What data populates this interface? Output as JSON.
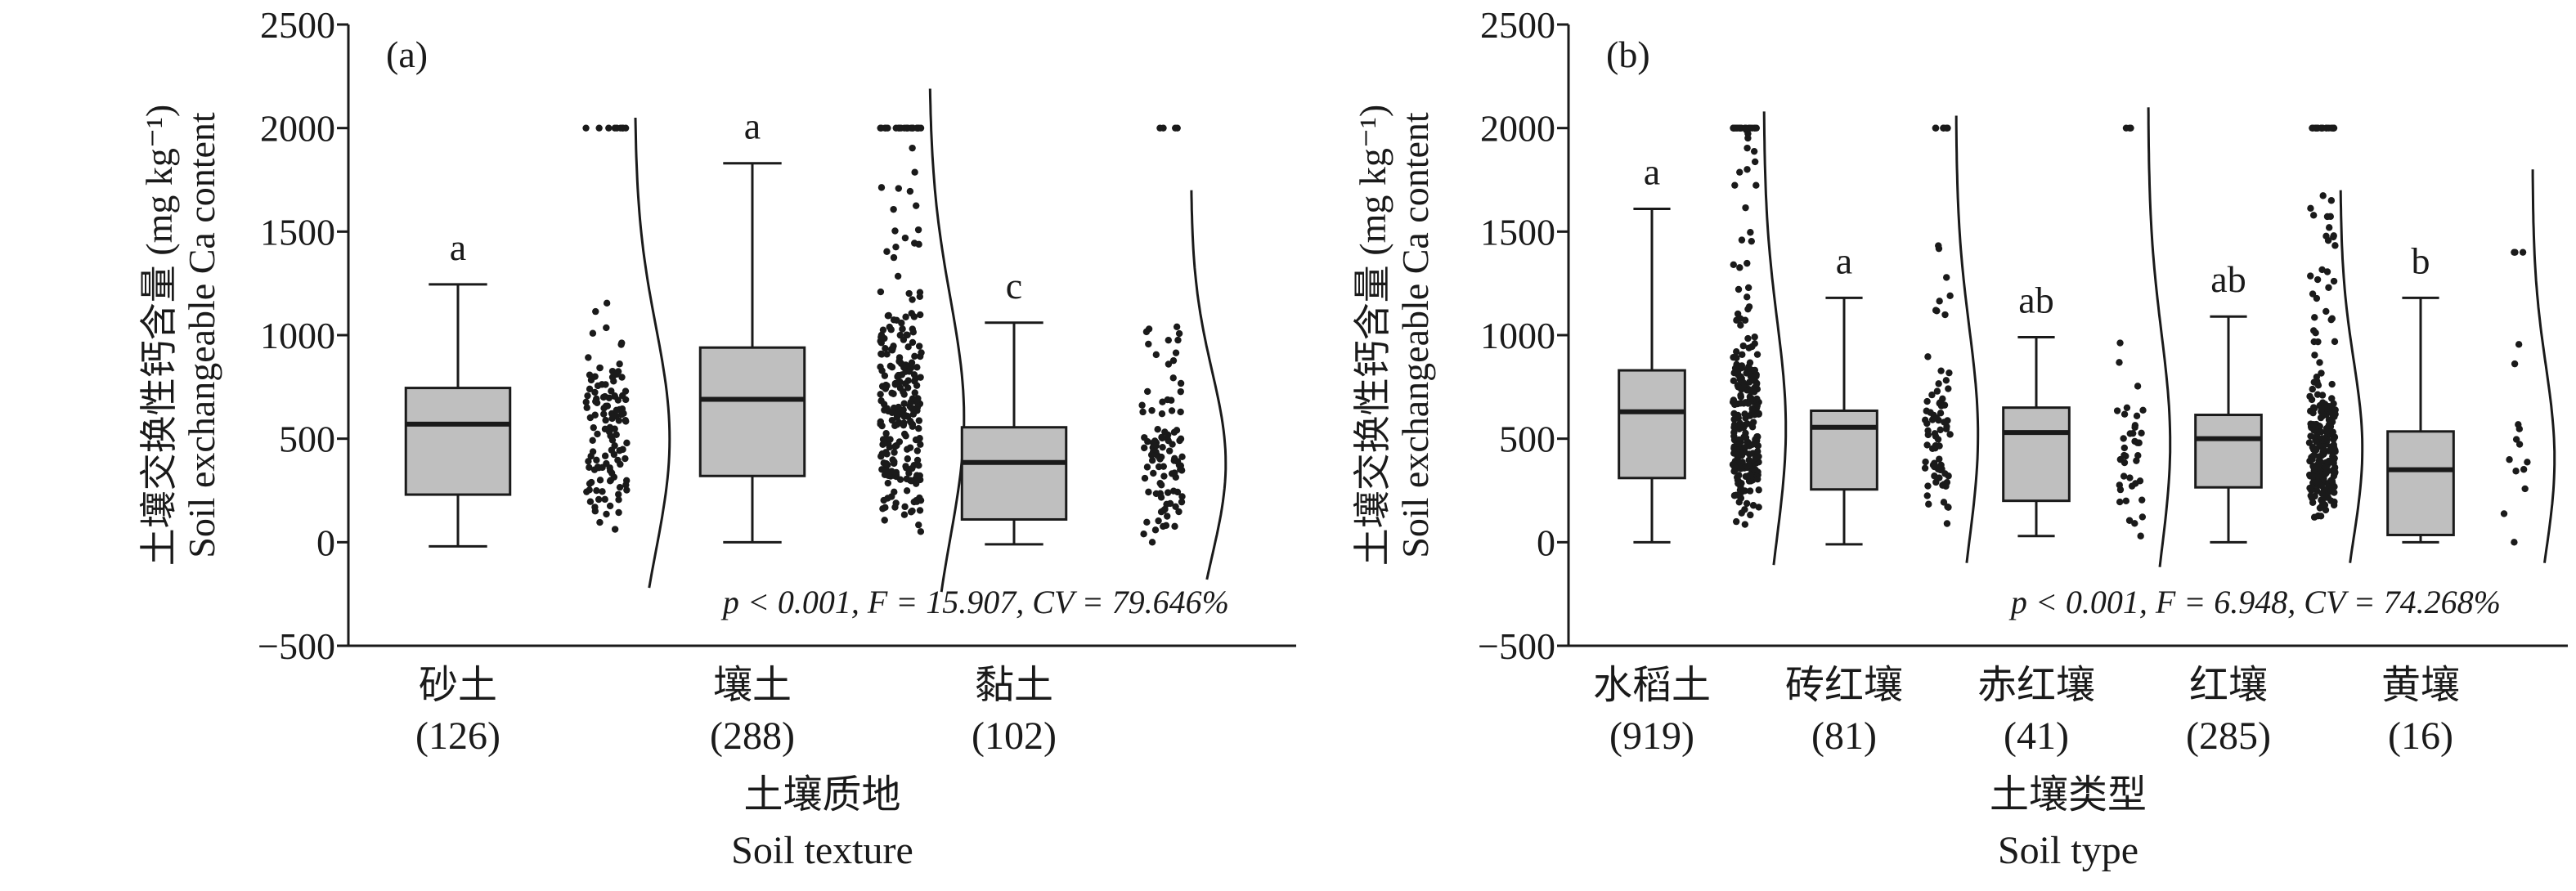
{
  "chart_data": [
    {
      "type": "box",
      "panel_label": "(a)",
      "ylabel_cn": "土壤交换性钙含量 (mg kg⁻¹)",
      "ylabel_en": "Soil exchangeable Ca content",
      "xlabel_cn": "土壤质地",
      "xlabel_en": "Soil texture",
      "ylim": [
        -500,
        2500
      ],
      "yticks": [
        -500,
        0,
        500,
        1000,
        1500,
        2000,
        2500
      ],
      "stat_text": "p < 0.001, F = 15.907, CV = 79.646%",
      "categories": [
        {
          "name": "砂土",
          "n": "(126)",
          "sig": "a",
          "min": -20,
          "q1": 230,
          "median": 570,
          "q3": 745,
          "max": 1245,
          "point_min": -10,
          "point_max": 2000,
          "pmin_top": 80,
          "pmax_top": 1200,
          "curve_top": 2050,
          "curve_bottom": -220,
          "curve_peak": 500
        },
        {
          "name": "壤土",
          "n": "(288)",
          "sig": "a",
          "min": 0,
          "q1": 320,
          "median": 690,
          "q3": 940,
          "max": 1830,
          "point_min": 0,
          "point_max": 2000,
          "pmin_top": 80,
          "pmax_top": 1950,
          "curve_top": 2190,
          "curve_bottom": -240,
          "curve_peak": 600
        },
        {
          "name": "黏土",
          "n": "(102)",
          "sig": "c",
          "min": -10,
          "q1": 110,
          "median": 385,
          "q3": 555,
          "max": 1060,
          "point_min": 0,
          "point_max": 2000,
          "pmin_top": 60,
          "pmax_top": 1050,
          "curve_top": 1700,
          "curve_bottom": -180,
          "curve_peak": 380
        }
      ]
    },
    {
      "type": "box",
      "panel_label": "(b)",
      "ylabel_cn": "土壤交换性钙含量 (mg kg⁻¹)",
      "ylabel_en": "Soil exchangeable Ca content",
      "xlabel_cn": "土壤类型",
      "xlabel_en": "Soil type",
      "ylim": [
        -500,
        2500
      ],
      "yticks": [
        -500,
        0,
        500,
        1000,
        1500,
        2000,
        2500
      ],
      "stat_text": "p < 0.001, F = 6.948, CV = 74.268%",
      "categories": [
        {
          "name": "水稻土",
          "n": "(919)",
          "sig": "a",
          "min": 0,
          "q1": 310,
          "median": 630,
          "q3": 830,
          "max": 1610,
          "point_min": 0,
          "point_max": 2000,
          "pmin_top": 80,
          "pmax_top": 2000,
          "curve_top": 2080,
          "curve_bottom": -110,
          "curve_peak": 550
        },
        {
          "name": "砖红壤",
          "n": "(81)",
          "sig": "a",
          "min": -10,
          "q1": 255,
          "median": 555,
          "q3": 635,
          "max": 1180,
          "point_min": 0,
          "point_max": 2000,
          "pmin_top": 80,
          "pmax_top": 1500,
          "curve_top": 2060,
          "curve_bottom": -100,
          "curve_peak": 520
        },
        {
          "name": "赤红壤",
          "n": "(41)",
          "sig": "ab",
          "min": 30,
          "q1": 200,
          "median": 530,
          "q3": 650,
          "max": 990,
          "point_min": 30,
          "point_max": 2000,
          "pmin_top": 60,
          "pmax_top": 1000,
          "curve_top": 2100,
          "curve_bottom": -120,
          "curve_peak": 480
        },
        {
          "name": "红壤",
          "n": "(285)",
          "sig": "ab",
          "min": 0,
          "q1": 265,
          "median": 500,
          "q3": 615,
          "max": 1090,
          "point_min": 0,
          "point_max": 2000,
          "pmin_top": 80,
          "pmax_top": 1700,
          "curve_top": 1700,
          "curve_bottom": -100,
          "curve_peak": 450
        },
        {
          "name": "黄壤",
          "n": "(16)",
          "sig": "b",
          "min": 0,
          "q1": 35,
          "median": 350,
          "q3": 535,
          "max": 1180,
          "point_min": 0,
          "point_max": 1400,
          "pmin_top": 20,
          "pmax_top": 1400,
          "curve_top": 1800,
          "curve_bottom": -100,
          "curve_peak": 400
        }
      ]
    }
  ]
}
